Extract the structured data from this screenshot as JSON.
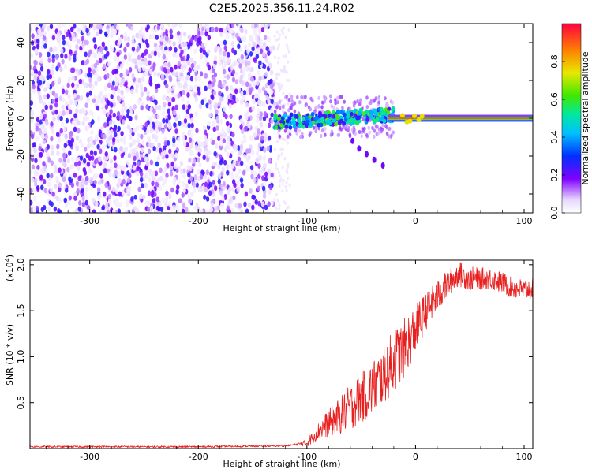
{
  "title": "C2E5.2025.356.11.24.R02",
  "colors": {
    "snr_line": "#e82020",
    "point_cloud": "#7a20e8",
    "carrier_line": "#ee1050"
  },
  "chart_data": [
    {
      "type": "heatmap",
      "name": "spectrogram",
      "xlabel": "Height of straight line (km)",
      "ylabel": "Frequency (Hz)",
      "xlim": [
        -355,
        108
      ],
      "ylim": [
        -50,
        50
      ],
      "xticks": [
        -300,
        -200,
        -100,
        0,
        100
      ],
      "xtick_labels": [
        "-300",
        "-200",
        "-100",
        "0",
        "100"
      ],
      "yticks": [
        -40,
        -20,
        0,
        20,
        40
      ],
      "ytick_labels": [
        "-40",
        "-20",
        "0",
        "20",
        "40"
      ],
      "regions": {
        "noise_floor_x": [
          -355,
          -130
        ],
        "noise_amplitude": 0.25,
        "signal_onset_x": -130,
        "carrier_frequency_hz": 0,
        "carrier_amplitude": 1.0,
        "scatter_band_x": [
          -130,
          -20
        ],
        "scatter_band_hz": [
          -4,
          8
        ],
        "side_track": [
          [
            -58,
            -12
          ],
          [
            -52,
            -16
          ],
          [
            -45,
            -19
          ],
          [
            -38,
            -22
          ],
          [
            -30,
            -25
          ]
        ]
      },
      "colorbar": {
        "label": "Normalized spectral amplitude",
        "range": [
          0.0,
          1.0
        ],
        "ticks": [
          0.0,
          0.2,
          0.4,
          0.6,
          0.8
        ],
        "tick_labels": [
          "0.0",
          "0.2",
          "0.4",
          "0.6",
          "0.8"
        ]
      }
    },
    {
      "type": "line",
      "name": "snr",
      "xlabel": "Height of straight line (km)",
      "ylabel": "SNR (10 * v/v)",
      "multiplier_label": "(x10",
      "multiplier_exp": "4",
      "multiplier_close": ")",
      "xlim": [
        -355,
        108
      ],
      "ylim": [
        0,
        2.05
      ],
      "xticks": [
        -300,
        -200,
        -100,
        0,
        100
      ],
      "xtick_labels": [
        "-300",
        "-200",
        "-100",
        "0",
        "100"
      ],
      "yticks": [
        0.5,
        1.0,
        1.5,
        2.0
      ],
      "ytick_labels": [
        "0.5",
        "1.0",
        "1.5",
        "2.0"
      ],
      "series": [
        {
          "name": "SNR",
          "envelope": {
            "x": [
              -355,
              -200,
              -120,
              -100,
              -90,
              -80,
              -70,
              -60,
              -50,
              -40,
              -30,
              -20,
              -10,
              0,
              10,
              20,
              30,
              40,
              50,
              60,
              70,
              80,
              90,
              100,
              108
            ],
            "y": [
              0.02,
              0.02,
              0.03,
              0.06,
              0.18,
              0.28,
              0.35,
              0.45,
              0.55,
              0.65,
              0.8,
              0.95,
              1.1,
              1.3,
              1.5,
              1.65,
              1.8,
              1.9,
              1.85,
              1.85,
              1.85,
              1.8,
              1.75,
              1.72,
              1.75
            ]
          },
          "noise_amplitude": {
            "x": [
              -355,
              -110,
              -100,
              -80,
              -60,
              -40,
              -20,
              -5,
              10,
              30,
              60,
              108
            ],
            "y": [
              0.01,
              0.01,
              0.04,
              0.15,
              0.25,
              0.3,
              0.35,
              0.3,
              0.2,
              0.15,
              0.12,
              0.12
            ]
          }
        }
      ]
    }
  ]
}
